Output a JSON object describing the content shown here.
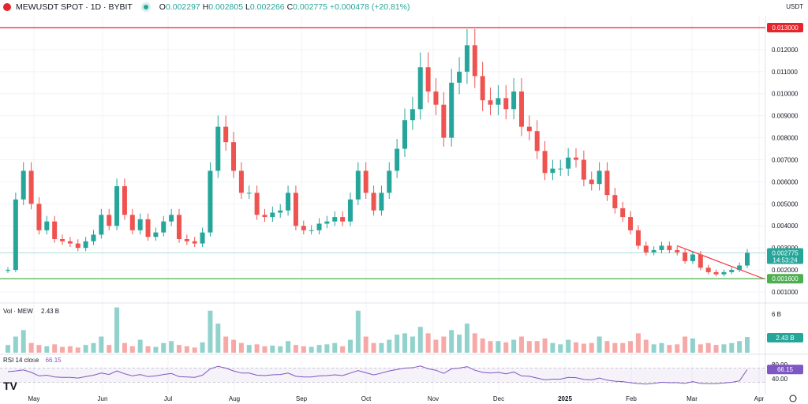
{
  "header": {
    "symbol": "MEWUSDT SPOT · 1D · BYBIT",
    "o_label": "O",
    "o": "0.002297",
    "h_label": "H",
    "h": "0.002805",
    "l_label": "L",
    "l": "0.002266",
    "c_label": "C",
    "c": "0.002775",
    "change": "+0.000478 (+20.81%)"
  },
  "currency": "USDT",
  "colors": {
    "up": "#26a69a",
    "down": "#ef5350",
    "resistance": "#e5242c",
    "support": "#4caf50",
    "rsi": "#7e57c2",
    "trendline": "#f23645"
  },
  "price_axis": {
    "ticks": [
      "0.012000",
      "0.011000",
      "0.010000",
      "0.009000",
      "0.008000",
      "0.007000",
      "0.006000",
      "0.005000",
      "0.004000",
      "0.003000",
      "0.002000",
      "0.001000"
    ],
    "resistance_label": "0.013000",
    "support_label": "0.001600",
    "last_price": "0.002775",
    "countdown": "14:53:24"
  },
  "x_axis": [
    "May",
    "Jun",
    "Jul",
    "Aug",
    "Sep",
    "Oct",
    "Nov",
    "Dec",
    "2025",
    "Feb",
    "Mar",
    "Apr"
  ],
  "volume": {
    "label": "Vol · MEW",
    "value": "2.43 B",
    "axis_tick": "6 B",
    "last_label": "2.43 B"
  },
  "rsi": {
    "label": "RSI 14 close",
    "value": "66.15",
    "ticks": [
      "80.00",
      "40.00"
    ],
    "last_label": "66.15"
  },
  "chart_data": {
    "type": "candlestick",
    "ylim": [
      0.0005,
      0.0135
    ],
    "closes": [
      0.002,
      0.0052,
      0.0065,
      0.005,
      0.0038,
      0.0042,
      0.0034,
      0.0033,
      0.0032,
      0.003,
      0.0033,
      0.0036,
      0.0045,
      0.004,
      0.0058,
      0.0045,
      0.0038,
      0.0043,
      0.0035,
      0.0037,
      0.0042,
      0.0045,
      0.0034,
      0.0033,
      0.0032,
      0.0037,
      0.0065,
      0.0085,
      0.0078,
      0.0065,
      0.0055,
      0.0055,
      0.0045,
      0.0044,
      0.0046,
      0.0047,
      0.0055,
      0.004,
      0.0038,
      0.0038,
      0.0041,
      0.0042,
      0.0044,
      0.0042,
      0.0052,
      0.0065,
      0.0055,
      0.0047,
      0.0055,
      0.0065,
      0.0075,
      0.0088,
      0.0093,
      0.0112,
      0.0101,
      0.0095,
      0.008,
      0.0105,
      0.011,
      0.0122,
      0.0108,
      0.0097,
      0.0095,
      0.0098,
      0.0093,
      0.0101,
      0.0085,
      0.0083,
      0.0074,
      0.0064,
      0.0066,
      0.0066,
      0.0071,
      0.007,
      0.0061,
      0.0059,
      0.0065,
      0.0054,
      0.0048,
      0.0044,
      0.0038,
      0.0031,
      0.0028,
      0.0029,
      0.0031,
      0.0029,
      0.0028,
      0.0024,
      0.0027,
      0.0021,
      0.0019,
      0.0018,
      0.0019,
      0.002,
      0.0022,
      0.002775
    ],
    "volumes": [
      1.2,
      2.5,
      3.5,
      1.5,
      1.2,
      1,
      1.3,
      0.9,
      1,
      0.8,
      1.2,
      1.5,
      2.5,
      1.2,
      7,
      1.5,
      1,
      2,
      1,
      0.9,
      1.5,
      1.8,
      1.2,
      1,
      0.8,
      1.6,
      6.5,
      4.5,
      2.5,
      2,
      1.5,
      1.2,
      1.3,
      1,
      1.1,
      1,
      1.8,
      1.2,
      1,
      0.9,
      1.2,
      1.3,
      1.5,
      1,
      2,
      6.5,
      2.5,
      1.5,
      1.5,
      2,
      2.8,
      3,
      2.5,
      4,
      3,
      2,
      2.5,
      3.5,
      2.8,
      4.5,
      3,
      2.2,
      1.8,
      1.8,
      1.6,
      2,
      2.5,
      1.8,
      1.8,
      2.2,
      1.5,
      1.3,
      2,
      1.6,
      1.4,
      1.5,
      2.5,
      1.8,
      1.5,
      1.5,
      1.8,
      3,
      2,
      1.3,
      1.5,
      1.2,
      1.3,
      2.5,
      2.2,
      1.3,
      1.5,
      1.2,
      1.3,
      1.5,
      1.8,
      2.43
    ],
    "rsi": [
      60,
      62,
      65,
      58,
      48,
      50,
      45,
      44,
      44,
      42,
      46,
      50,
      56,
      52,
      62,
      54,
      48,
      52,
      46,
      48,
      52,
      55,
      46,
      45,
      44,
      50,
      68,
      75,
      70,
      62,
      56,
      56,
      50,
      49,
      51,
      52,
      56,
      47,
      45,
      45,
      48,
      49,
      51,
      49,
      56,
      63,
      57,
      51,
      56,
      62,
      66,
      70,
      71,
      76,
      68,
      64,
      55,
      68,
      70,
      74,
      64,
      58,
      56,
      58,
      54,
      59,
      48,
      47,
      42,
      37,
      39,
      39,
      44,
      43,
      38,
      37,
      42,
      36,
      33,
      32,
      29,
      26,
      25,
      27,
      30,
      29,
      29,
      27,
      32,
      27,
      26,
      26,
      28,
      30,
      34,
      66.15
    ]
  }
}
